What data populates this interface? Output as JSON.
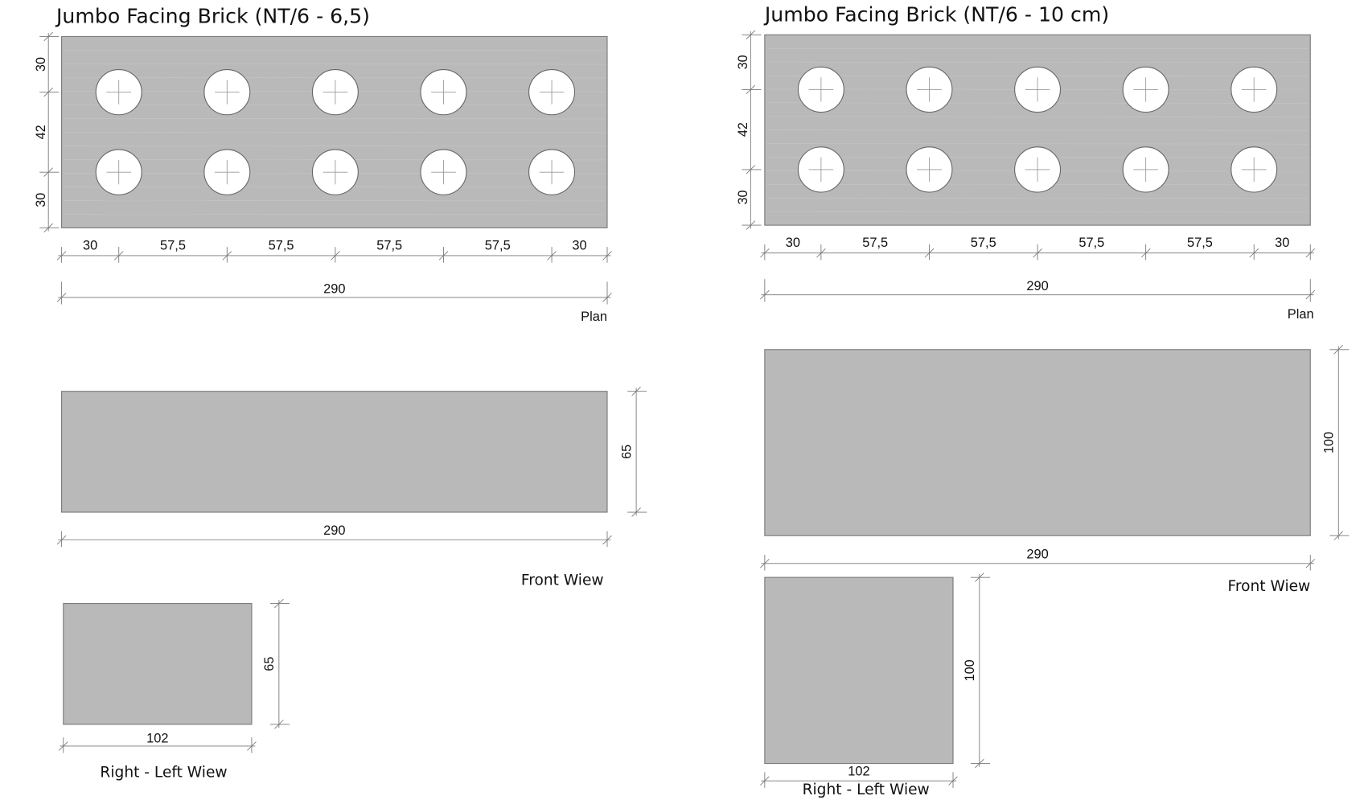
{
  "panels": [
    {
      "title": "Jumbo Facing Brick (NT/6 - 6,5)",
      "plan": {
        "side_dims": [
          "30",
          "42",
          "30"
        ],
        "bottom_dims": [
          "30",
          "57,5",
          "57,5",
          "57,5",
          "57,5",
          "30"
        ],
        "total": "290",
        "label": "Plan"
      },
      "front": {
        "height": "65",
        "width": "290",
        "label": "Front Wiew"
      },
      "side": {
        "height": "65",
        "width": "102",
        "label": "Right - Left Wiew"
      }
    },
    {
      "title": "Jumbo Facing Brick (NT/6 - 10 cm)",
      "plan": {
        "side_dims": [
          "30",
          "42",
          "30"
        ],
        "bottom_dims": [
          "30",
          "57,5",
          "57,5",
          "57,5",
          "57,5",
          "30"
        ],
        "total": "290",
        "label": "Plan"
      },
      "front": {
        "height": "100",
        "width": "290",
        "label": "Front Wiew"
      },
      "side": {
        "height": "100",
        "width": "102",
        "label": "Right - Left Wiew"
      }
    }
  ]
}
